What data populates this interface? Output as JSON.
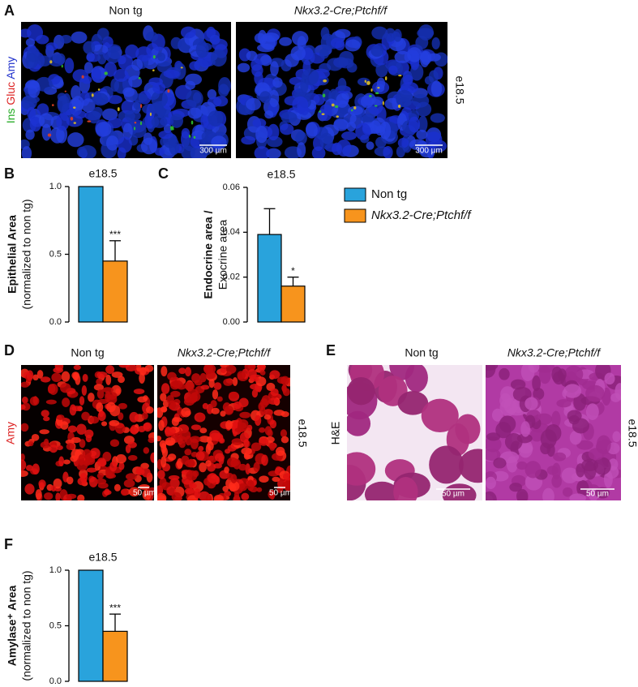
{
  "panels": {
    "A": {
      "label": "A",
      "titles": [
        "Non tg",
        "Nkx3.2-Cre;Ptchf/f"
      ],
      "stain": [
        "Ins",
        "Gluc",
        "Amy"
      ],
      "stage": "e18.5",
      "scale_bars": [
        "300 µm",
        "300 µm"
      ]
    },
    "B": {
      "label": "B"
    },
    "C": {
      "label": "C"
    },
    "D": {
      "label": "D",
      "titles": [
        "Non tg",
        "Nkx3.2-Cre;Ptchf/f"
      ],
      "stain": "Amy",
      "stage": "e18.5",
      "scale_bars": [
        "50 µm",
        "50 µm"
      ]
    },
    "E": {
      "label": "E",
      "titles": [
        "Non tg",
        "Nkx3.2-Cre;Ptchf/f"
      ],
      "stain": "H&E",
      "stage": "e18.5",
      "scale_bars": [
        "50 µm",
        "50 µm"
      ]
    },
    "F": {
      "label": "F"
    }
  },
  "chart_data": [
    {
      "type": "bar",
      "title": "e18.5",
      "y_label": [
        "Epithelial Area",
        "(normalized to non tg)"
      ],
      "series": [
        {
          "color": "#29a3dc",
          "values": [
            1.0
          ]
        },
        {
          "color": "#f7941d",
          "values": [
            0.45
          ],
          "errors": [
            0.15
          ]
        }
      ],
      "significance": "***",
      "ylim": [
        0,
        1
      ],
      "yticks": [
        {
          "value": 0,
          "label": "0.0"
        },
        0.5,
        {
          "value": 1,
          "label": "1.0"
        }
      ]
    },
    {
      "type": "bar",
      "title": "e18.5",
      "y_label": [
        "Endocrine area /",
        "Exocrine area"
      ],
      "series": [
        {
          "name": "Non tg",
          "color": "#29a3dc",
          "values": [
            0.039
          ],
          "errors": [
            0.0115
          ]
        },
        {
          "name": "Nkx3.2-Cre;Ptchf/f",
          "color": "#f7941d",
          "values": [
            0.016
          ],
          "errors": [
            0.004
          ]
        }
      ],
      "significance": "*",
      "ylim": [
        0,
        0.06
      ],
      "yticks": [
        {
          "value": 0,
          "label": "0.00"
        },
        0.02,
        0.04,
        0.06
      ]
    },
    {
      "type": "bar",
      "title": "e18.5",
      "y_label": [
        "Amylase⁺ Area",
        "(normalized to non tg)"
      ],
      "series": [
        {
          "color": "#29a3dc",
          "values": [
            1.0
          ]
        },
        {
          "color": "#f7941d",
          "values": [
            0.45
          ],
          "errors": [
            0.155
          ]
        }
      ],
      "significance": "***",
      "ylim": [
        0,
        1
      ],
      "yticks": [
        {
          "value": 0,
          "label": "0.0"
        },
        0.5,
        {
          "value": 1,
          "label": "1.0"
        }
      ]
    }
  ]
}
